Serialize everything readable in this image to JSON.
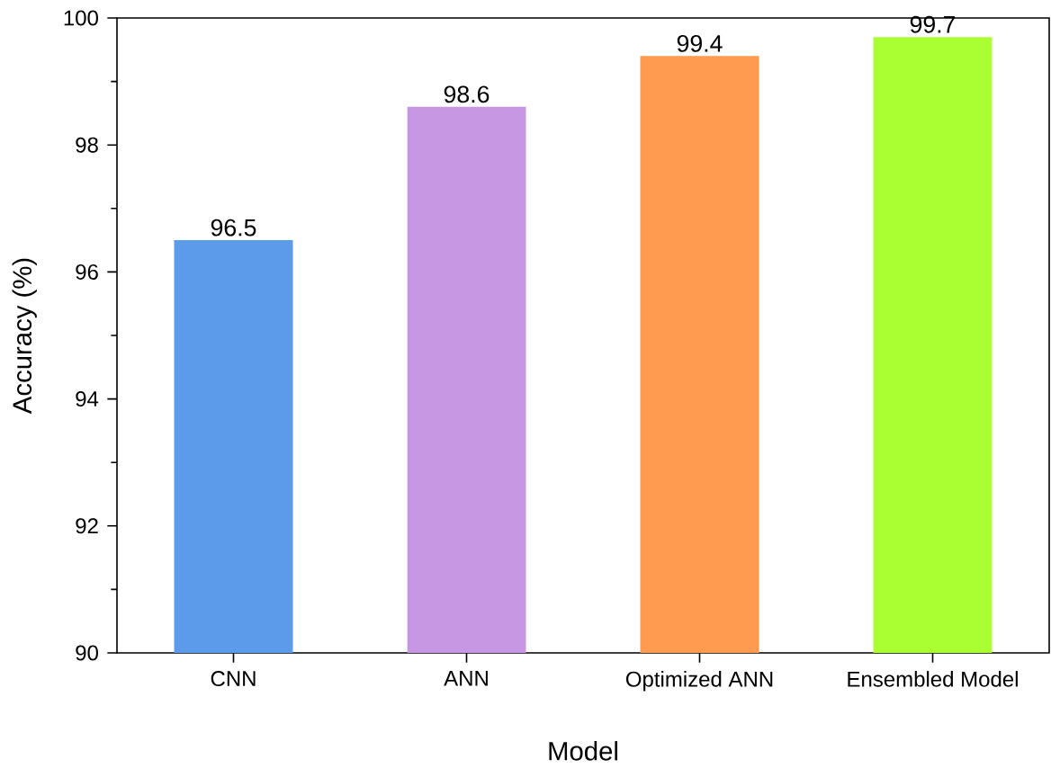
{
  "chart_data": {
    "type": "bar",
    "xlabel": "Model",
    "ylabel": "Accuracy (%)",
    "categories": [
      "CNN",
      "ANN",
      "Optimized ANN",
      "Ensembled Model"
    ],
    "values": [
      96.5,
      98.6,
      99.4,
      99.7
    ],
    "colors": [
      "#5b9bea",
      "#c797e4",
      "#ff9b50",
      "#aaff33"
    ],
    "ylim": [
      90,
      100
    ],
    "yticks": [
      90,
      92,
      94,
      96,
      98,
      100
    ],
    "data_labels": true
  }
}
